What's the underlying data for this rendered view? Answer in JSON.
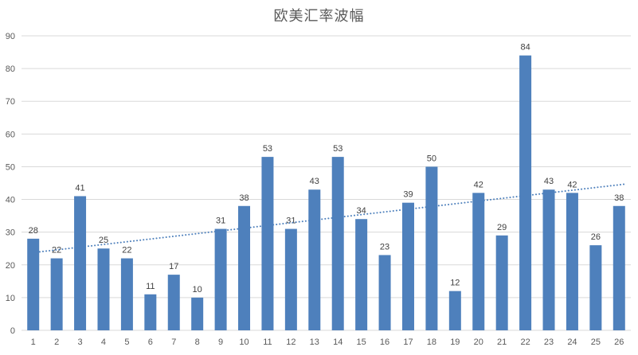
{
  "chart_data": {
    "type": "bar",
    "title": "欧美汇率波幅",
    "categories": [
      "1",
      "2",
      "3",
      "4",
      "5",
      "6",
      "7",
      "8",
      "9",
      "10",
      "11",
      "12",
      "13",
      "14",
      "15",
      "16",
      "17",
      "18",
      "19",
      "20",
      "21",
      "22",
      "23",
      "24",
      "25",
      "26"
    ],
    "values": [
      28,
      22,
      41,
      25,
      22,
      11,
      17,
      10,
      31,
      38,
      53,
      31,
      43,
      53,
      34,
      23,
      39,
      50,
      12,
      42,
      29,
      84,
      43,
      42,
      26,
      38
    ],
    "xlabel": "",
    "ylabel": "",
    "ylim": [
      0,
      90
    ],
    "ytick_step": 10,
    "ytick_labels": [
      "0",
      "10",
      "20",
      "30",
      "40",
      "50",
      "60",
      "70",
      "80",
      "90"
    ],
    "grid": true,
    "data_labels_visible": true,
    "legend": "none",
    "trendline": {
      "type": "linear",
      "style": "dotted"
    },
    "colors": {
      "bar": "#4e80bc",
      "trendline": "#4e80bc",
      "gridline": "#d9d9d9",
      "axis_line": "#d9d9d9",
      "tick_text": "#595959",
      "data_label_text": "#404040",
      "title_text": "#595959",
      "background": "#ffffff"
    }
  }
}
